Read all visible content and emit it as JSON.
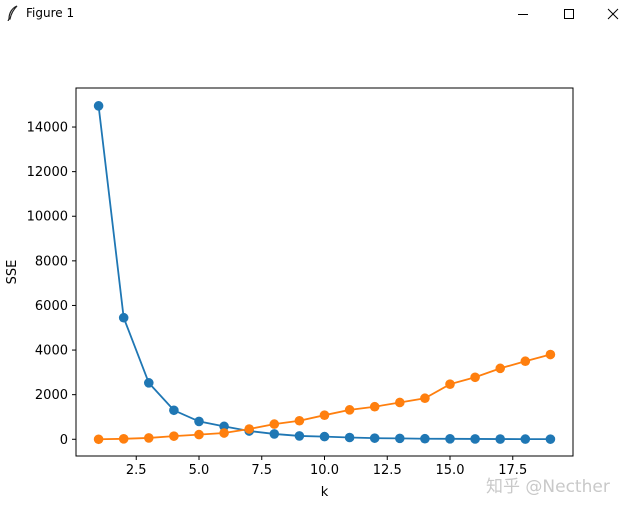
{
  "window": {
    "title": "Figure 1"
  },
  "watermark": "知乎 @Necther",
  "chart_data": {
    "type": "line",
    "title": "",
    "xlabel": "k",
    "ylabel": "SSE",
    "xlim": [
      0.1,
      19.9
    ],
    "ylim": [
      -750,
      15750
    ],
    "x_ticks": [
      2.5,
      5.0,
      7.5,
      10.0,
      12.5,
      15.0,
      17.5
    ],
    "x_tick_labels": [
      "2.5",
      "5.0",
      "7.5",
      "10.0",
      "12.5",
      "15.0",
      "17.5"
    ],
    "y_ticks": [
      0,
      2000,
      4000,
      6000,
      8000,
      10000,
      12000,
      14000
    ],
    "y_tick_labels": [
      "0",
      "2000",
      "4000",
      "6000",
      "8000",
      "10000",
      "12000",
      "14000"
    ],
    "grid": false,
    "x": [
      1,
      2,
      3,
      4,
      5,
      6,
      7,
      8,
      9,
      10,
      11,
      12,
      13,
      14,
      15,
      16,
      17,
      18,
      19
    ],
    "series": [
      {
        "color": "#1f77b4",
        "values": [
          14950,
          5450,
          2530,
          1300,
          800,
          580,
          370,
          240,
          150,
          120,
          80,
          50,
          40,
          25,
          20,
          15,
          10,
          8,
          5
        ]
      },
      {
        "color": "#ff7f0e",
        "values": [
          0,
          20,
          60,
          140,
          210,
          280,
          460,
          680,
          830,
          1080,
          1320,
          1460,
          1650,
          1840,
          2470,
          2780,
          3180,
          3500,
          3800
        ]
      }
    ]
  }
}
